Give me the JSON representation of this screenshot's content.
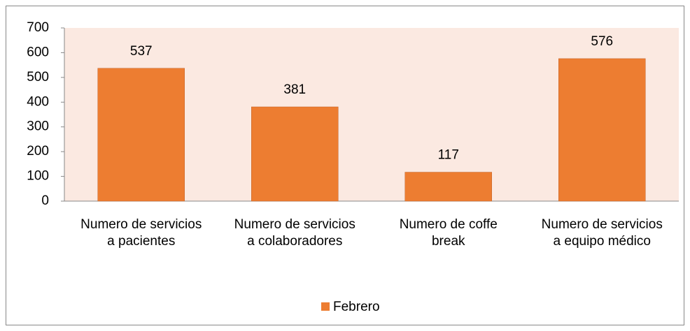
{
  "chart_data": {
    "type": "bar",
    "categories": [
      "Numero de servicios a pacientes",
      "Numero de servicios a colaboradores",
      "Numero de coffe break",
      "Numero de servicios a equipo médico"
    ],
    "series": [
      {
        "name": "Febrero",
        "color": "#ed7d31",
        "values": [
          537,
          381,
          117,
          576
        ]
      }
    ],
    "ylim": [
      0,
      700
    ],
    "yticks": [
      0,
      100,
      200,
      300,
      400,
      500,
      600,
      700
    ],
    "plot_background": "#fbe9e1",
    "legend": "bottom",
    "data_labels": true
  }
}
